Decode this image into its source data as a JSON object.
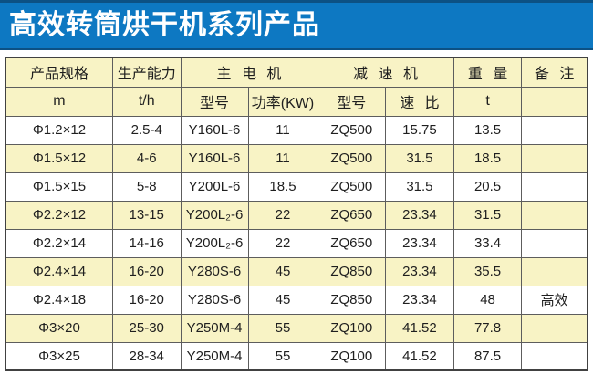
{
  "title": "高效转筒烘干机系列产品",
  "colors": {
    "title_bg": "#0d78c2",
    "title_edge": "#0c5184",
    "header_bg": "#f8f3c5",
    "row_alt_bg": "#f8f3c5",
    "row_bg": "#ffffff",
    "border_outer": "#414141",
    "border_inner": "#5d5d5d",
    "text": "#1f1f1f"
  },
  "table": {
    "header_row1": [
      {
        "label": "产品规格",
        "colspan": 1
      },
      {
        "label": "生产能力",
        "colspan": 1
      },
      {
        "label": "主 电 机",
        "colspan": 2
      },
      {
        "label": "减 速 机",
        "colspan": 2
      },
      {
        "label": "重 量",
        "colspan": 1
      },
      {
        "label": "备 注",
        "colspan": 1
      }
    ],
    "header_row2": [
      "m",
      "t/h",
      "型号",
      "功率(KW)",
      "型号",
      "速 比",
      "t",
      ""
    ],
    "rows": [
      [
        "Φ1.2×12",
        "2.5-4",
        "Y160L-6",
        "11",
        "ZQ500",
        "15.75",
        "13.5",
        ""
      ],
      [
        "Φ1.5×12",
        "4-6",
        "Y160L-6",
        "11",
        "ZQ500",
        "31.5",
        "18.5",
        ""
      ],
      [
        "Φ1.5×15",
        "5-8",
        "Y200L-6",
        "18.5",
        "ZQ500",
        "31.5",
        "20.5",
        ""
      ],
      [
        "Φ2.2×12",
        "13-15",
        "Y200L₂-6",
        "22",
        "ZQ650",
        "23.34",
        "31.5",
        ""
      ],
      [
        "Φ2.2×14",
        "14-16",
        "Y200L₂-6",
        "22",
        "ZQ650",
        "23.34",
        "33.4",
        ""
      ],
      [
        "Φ2.4×14",
        "16-20",
        "Y280S-6",
        "45",
        "ZQ850",
        "23.34",
        "35.5",
        ""
      ],
      [
        "Φ2.4×18",
        "16-20",
        "Y280S-6",
        "45",
        "ZQ850",
        "23.34",
        "48",
        "高效"
      ],
      [
        "Φ3×20",
        "25-30",
        "Y250M-4",
        "55",
        "ZQ100",
        "41.52",
        "77.8",
        ""
      ],
      [
        "Φ3×25",
        "28-34",
        "Y250M-4",
        "55",
        "ZQ100",
        "41.52",
        "87.5",
        ""
      ]
    ]
  }
}
